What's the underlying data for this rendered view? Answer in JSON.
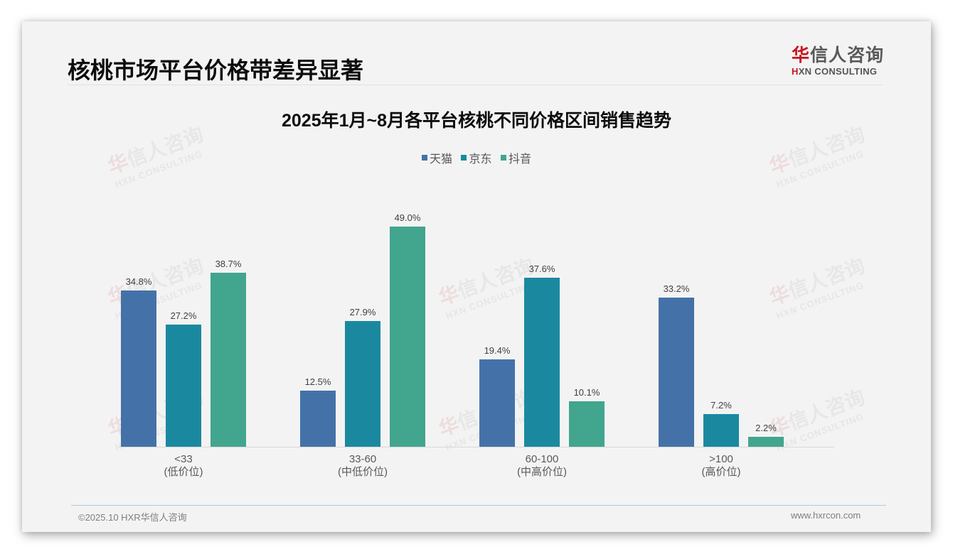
{
  "header": {
    "page_title": "核桃市场平台价格带差异显著",
    "logo": {
      "cn_prefix": "华",
      "cn_rest": "信人咨询",
      "en_prefix": "H",
      "en_rest": "XN CONSULTING"
    }
  },
  "watermark": {
    "cn_prefix": "华",
    "cn_rest": "信人咨询",
    "en": "HXN CONSULTING"
  },
  "colors": {
    "tmall": "#4472a8",
    "jd": "#1a89a0",
    "douyin": "#42a58e",
    "brand_red": "#c8141e"
  },
  "chart_data": {
    "type": "bar",
    "title": "2025年1月~8月各平台核桃不同价格区间销售趋势",
    "xlabel": "",
    "ylabel": "",
    "ylim": [
      0,
      50
    ],
    "grid": false,
    "legend_position": "top",
    "categories": [
      "<33\n(低价位)",
      "33-60\n(中低价位)",
      "60-100\n(中高价位)",
      ">100\n(高价位)"
    ],
    "category_lines": [
      [
        "<33",
        "(低价位)"
      ],
      [
        "33-60",
        "(中低价位)"
      ],
      [
        "60-100",
        "(中高价位)"
      ],
      [
        ">100",
        "(高价位)"
      ]
    ],
    "series": [
      {
        "name": "天猫",
        "color": "#4472a8",
        "values": [
          34.8,
          12.5,
          19.4,
          33.2
        ],
        "labels": [
          "34.8%",
          "12.5%",
          "19.4%",
          "33.2%"
        ]
      },
      {
        "name": "京东",
        "color": "#1a89a0",
        "values": [
          27.2,
          27.9,
          37.6,
          7.2
        ],
        "labels": [
          "27.2%",
          "27.9%",
          "37.6%",
          "7.2%"
        ]
      },
      {
        "name": "抖音",
        "color": "#42a58e",
        "values": [
          38.7,
          49.0,
          10.1,
          2.2
        ],
        "labels": [
          "38.7%",
          "49.0%",
          "10.1%",
          "2.2%"
        ]
      }
    ]
  },
  "footer": {
    "copyright": "©2025.10 HXR华信人咨询",
    "website": "www.hxrcon.com"
  }
}
